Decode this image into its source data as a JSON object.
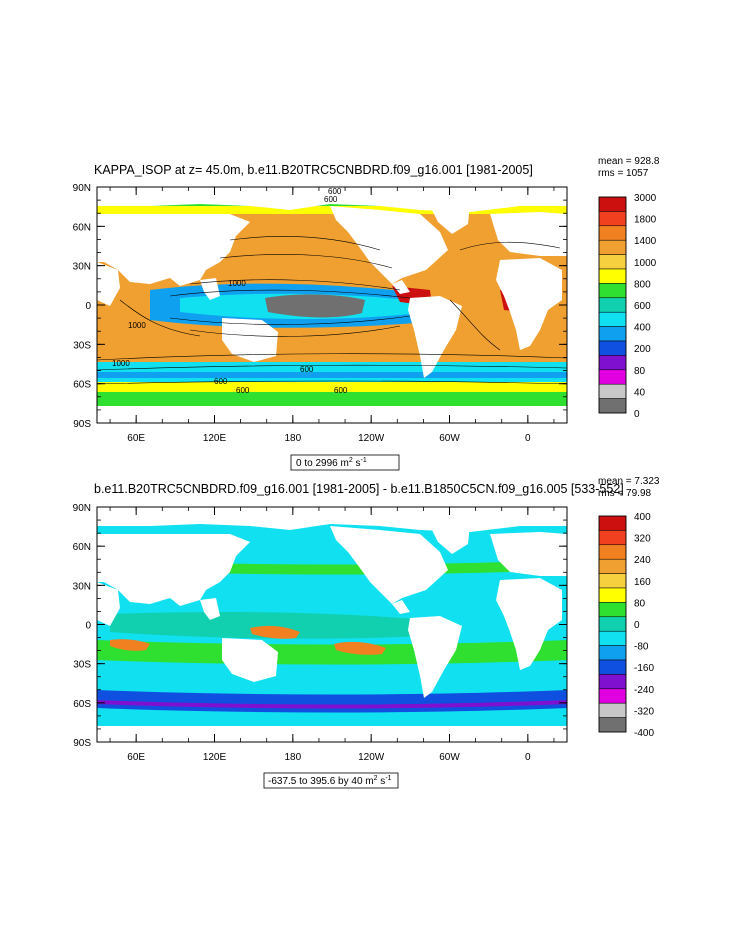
{
  "colors": {
    "land": "#ffffff",
    "frame": "#000000",
    "contour_line": "#000000"
  },
  "chart_data": [
    {
      "type": "heatmap",
      "title": "KAPPA_ISOP at z=  45.0m, b.e11.B20TRC5CNBDRD.f09_g16.001 [1981-2005]",
      "stats": {
        "mean": "mean = 928.8",
        "rms": "rms = 1057"
      },
      "range_label": {
        "prefix": "0 to 2996 m",
        "sup": "2",
        "mid": " s",
        "sup2": "-1"
      },
      "x_ticks": [
        "60E",
        "120E",
        "180",
        "120W",
        "60W",
        "0"
      ],
      "x_values_deg": [
        60,
        120,
        180,
        240,
        300,
        360
      ],
      "x_range_deg": [
        30,
        390
      ],
      "y_ticks": [
        "90N",
        "60N",
        "30N",
        "0",
        "30S",
        "60S",
        "90S"
      ],
      "y_values_deg": [
        90,
        60,
        30,
        0,
        -30,
        -60,
        -90
      ],
      "contours": true,
      "contour_labels": [
        "600",
        "600",
        "1000",
        "1000",
        "1000",
        "600",
        "600",
        "600",
        "600"
      ],
      "colorbar": {
        "labels": [
          "3000",
          "1800",
          "1400",
          "1000",
          "800",
          "600",
          "400",
          "200",
          "80",
          "40",
          "0"
        ],
        "colors": [
          "#cc1010",
          "#f04020",
          "#f08020",
          "#f0a030",
          "#f7d040",
          "#ffff00",
          "#30e030",
          "#10d0b0",
          "#10e0f0",
          "#10a0f0",
          "#1050e0",
          "#8010d0",
          "#e000e0",
          "#c8c8c8",
          "#707070"
        ]
      },
      "field_colors": {
        "ocean_main": "#f0a030",
        "subpolar": "#ffff00",
        "equator": "#10a0f0",
        "south_band": "#10e0f0",
        "arctic": "#30e030",
        "deep_low": "#707070",
        "coast_high": "#cc1010"
      }
    },
    {
      "type": "heatmap",
      "title": "b.e11.B20TRC5CNBDRD.f09_g16.001 [1981-2005] - b.e11.B1850C5CN.f09_g16.005 [533-552]",
      "stats": {
        "mean": "mean = 7.323",
        "rms": "rms = 79.98"
      },
      "range_label": {
        "prefix": "-637.5 to 395.6 by 40 m",
        "sup": "2",
        "mid": " s",
        "sup2": "-1"
      },
      "x_ticks": [
        "60E",
        "120E",
        "180",
        "120W",
        "60W",
        "0"
      ],
      "x_values_deg": [
        60,
        120,
        180,
        240,
        300,
        360
      ],
      "x_range_deg": [
        30,
        390
      ],
      "y_ticks": [
        "90N",
        "60N",
        "30N",
        "0",
        "30S",
        "60S",
        "90S"
      ],
      "y_values_deg": [
        90,
        60,
        30,
        0,
        -30,
        -60,
        -90
      ],
      "contours": false,
      "colorbar": {
        "labels": [
          "400",
          "320",
          "240",
          "160",
          "80",
          "0",
          "-80",
          "-160",
          "-240",
          "-320",
          "-400"
        ],
        "colors": [
          "#cc1010",
          "#f04020",
          "#f08020",
          "#f0a030",
          "#f7d040",
          "#ffff00",
          "#30e030",
          "#10d0b0",
          "#10e0f0",
          "#10a0f0",
          "#1050e0",
          "#8010d0",
          "#e000e0",
          "#c8c8c8",
          "#707070"
        ]
      },
      "field_colors": {
        "ocean_main": "#10e0f0",
        "subpolar": "#30e030",
        "equator": "#10d0b0",
        "south_band": "#1050e0",
        "arctic": "#10e0f0",
        "deep_low": "#8010d0",
        "coast_high": "#f08020"
      }
    }
  ]
}
